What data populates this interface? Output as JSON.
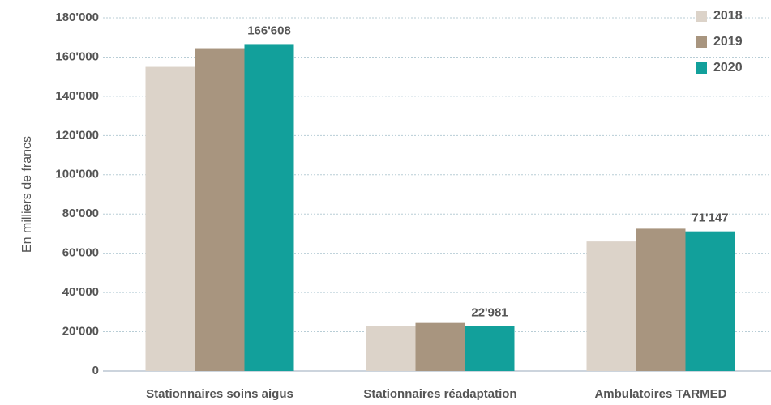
{
  "chart_data": {
    "type": "bar",
    "y_axis_label": "En milliers de francs",
    "categories": [
      "Stationnaires soins aigus",
      "Stationnaires réadaptation",
      "Ambulatoires TARMED"
    ],
    "series": [
      {
        "name": "2018",
        "color": "#dcd3c9",
        "values": [
          155000,
          23000,
          66000
        ]
      },
      {
        "name": "2019",
        "color": "#a8957f",
        "values": [
          164500,
          24500,
          72500
        ]
      },
      {
        "name": "2020",
        "color": "#12a09b",
        "values": [
          166608,
          22981,
          71147
        ],
        "value_labels": [
          "166'608",
          "22'981",
          "71'147"
        ]
      }
    ],
    "ylim": [
      0,
      180000
    ],
    "yticks": [
      0,
      {
        "value": 20000,
        "label": "20'000"
      },
      {
        "value": 40000,
        "label": "40'000"
      },
      {
        "value": 60000,
        "label": "60'000"
      },
      {
        "value": 80000,
        "label": "80'000"
      },
      {
        "value": 100000,
        "label": "100'000"
      },
      {
        "value": 120000,
        "label": "120'000"
      },
      {
        "value": 140000,
        "label": "140'000"
      },
      {
        "value": 160000,
        "label": "160'000"
      },
      {
        "value": 180000,
        "label": "180'000"
      }
    ],
    "grid": true,
    "legend": "top-right"
  }
}
